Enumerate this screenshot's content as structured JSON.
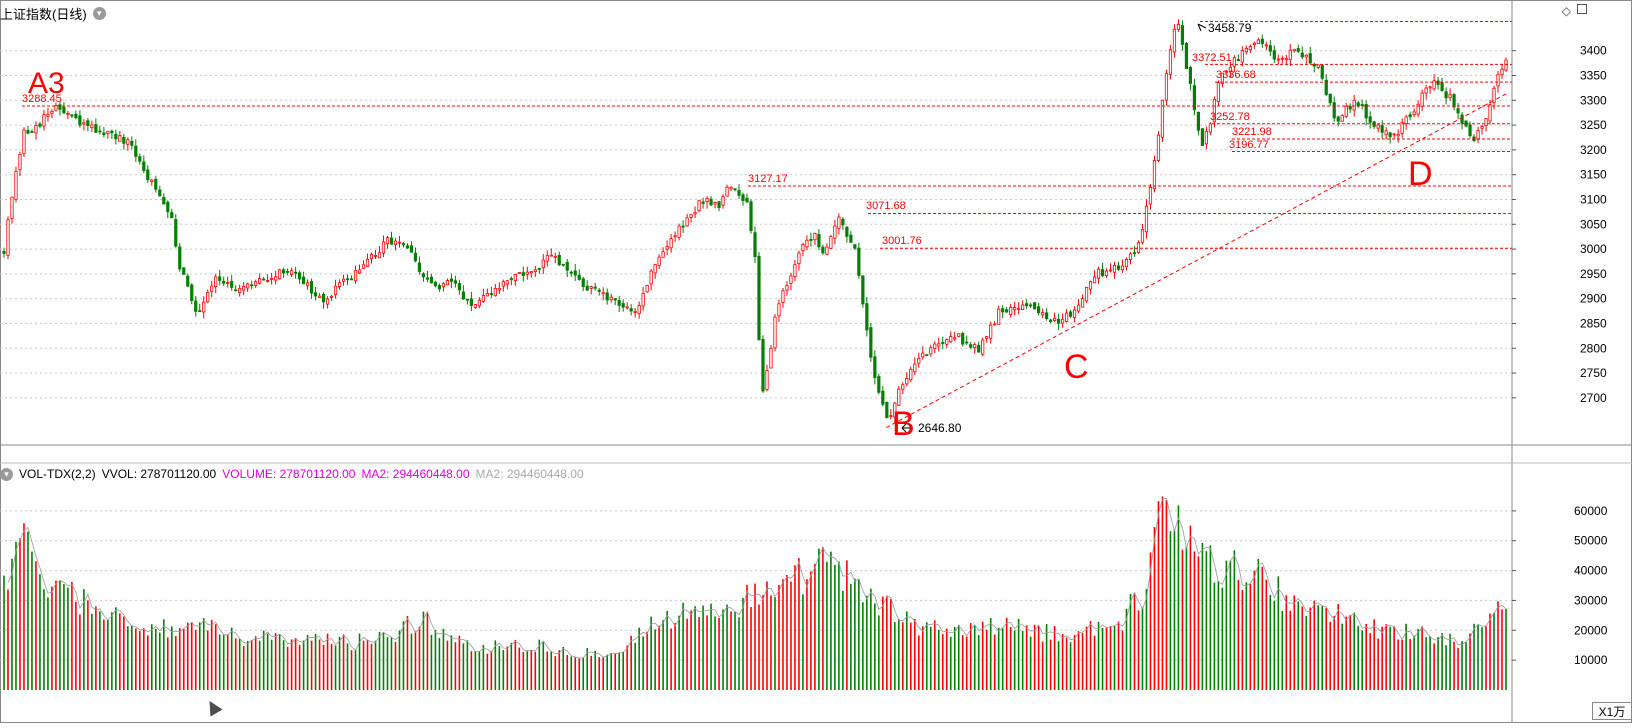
{
  "header": {
    "title": "上证指数(日线)",
    "title_button_icon": "chevron-down-icon"
  },
  "volume_header": {
    "button_icon": "chevron-down-icon",
    "indicator": "VOL-TDX(2,2)",
    "vvol": "VVOL: 278701120.00",
    "volume": "VOLUME: 278701120.00",
    "ma2": "MA2: 294460448.00",
    "ma2_alt": "MA2: 294460448.00",
    "colors": {
      "volume": "#e000e0",
      "ma2": "#e000e0",
      "ma2_alt": "#aaaaaa"
    }
  },
  "unit_label": "X1万",
  "colors": {
    "up": "#ff0000",
    "down": "#008000",
    "annotation": "#ff0000",
    "grid": "#c8c8c8"
  },
  "chart_data": [
    {
      "type": "candlestick",
      "title": "上证指数(日线)",
      "y_ticks": [
        2700,
        2750,
        2800,
        2850,
        2900,
        2950,
        3000,
        3050,
        3100,
        3150,
        3200,
        3250,
        3300,
        3350,
        3400
      ],
      "ylim": [
        2615,
        3470
      ],
      "grid": true,
      "bars": 377,
      "anchors": [
        [
          0,
          3000
        ],
        [
          4,
          3100
        ],
        [
          10,
          3230
        ],
        [
          23,
          3270
        ],
        [
          27,
          3288.45
        ],
        [
          40,
          3250
        ],
        [
          50,
          3240
        ],
        [
          65,
          3210
        ],
        [
          80,
          3110
        ],
        [
          87,
          3070
        ],
        [
          90,
          2980
        ],
        [
          100,
          2870
        ],
        [
          110,
          2950
        ],
        [
          120,
          2910
        ],
        [
          135,
          2940
        ],
        [
          150,
          2960
        ],
        [
          165,
          2890
        ],
        [
          175,
          2930
        ],
        [
          190,
          2980
        ],
        [
          200,
          3020
        ],
        [
          210,
          3000
        ],
        [
          215,
          2950
        ],
        [
          225,
          2920
        ],
        [
          233,
          2935
        ],
        [
          243,
          2880
        ],
        [
          255,
          2920
        ],
        [
          265,
          2950
        ],
        [
          275,
          2950
        ],
        [
          283,
          2990
        ],
        [
          290,
          2960
        ],
        [
          300,
          2930
        ],
        [
          313,
          2900
        ],
        [
          318,
          2885
        ],
        [
          328,
          2880
        ],
        [
          338,
          2980
        ],
        [
          350,
          3040
        ],
        [
          362,
          3100
        ],
        [
          370,
          3090
        ],
        [
          375,
          3127.17
        ],
        [
          385,
          3090
        ],
        [
          390,
          2960
        ],
        [
          392,
          2700
        ],
        [
          396,
          2770
        ],
        [
          400,
          2880
        ],
        [
          405,
          2930
        ],
        [
          415,
          3010
        ],
        [
          420,
          3030
        ],
        [
          425,
          2990
        ],
        [
          430,
          3050
        ],
        [
          433,
          3071.68
        ],
        [
          437,
          3010
        ],
        [
          441,
          3001.76
        ],
        [
          445,
          2890
        ],
        [
          450,
          2760
        ],
        [
          455,
          2690
        ],
        [
          458,
          2646.8
        ],
        [
          462,
          2700
        ],
        [
          470,
          2760
        ],
        [
          480,
          2800
        ],
        [
          490,
          2830
        ],
        [
          505,
          2800
        ],
        [
          515,
          2870
        ],
        [
          525,
          2890
        ],
        [
          535,
          2880
        ],
        [
          545,
          2850
        ],
        [
          555,
          2880
        ],
        [
          565,
          2950
        ],
        [
          575,
          2960
        ],
        [
          585,
          2990
        ],
        [
          590,
          3050
        ],
        [
          594,
          3130
        ],
        [
          598,
          3240
        ],
        [
          602,
          3350
        ],
        [
          605,
          3420
        ],
        [
          608,
          3458.79
        ],
        [
          612,
          3372.51
        ],
        [
          617,
          3280
        ],
        [
          620,
          3196.77
        ],
        [
          625,
          3260
        ],
        [
          630,
          3350
        ],
        [
          640,
          3390
        ],
        [
          650,
          3420
        ],
        [
          660,
          3380
        ],
        [
          670,
          3400
        ],
        [
          680,
          3372.51
        ],
        [
          690,
          3260
        ],
        [
          700,
          3300
        ],
        [
          710,
          3250
        ],
        [
          720,
          3230
        ],
        [
          730,
          3280
        ],
        [
          740,
          3340
        ],
        [
          750,
          3300
        ],
        [
          757,
          3240
        ],
        [
          762,
          3221.98
        ],
        [
          767,
          3260
        ],
        [
          772,
          3330
        ],
        [
          777,
          3380
        ]
      ],
      "annotations": [
        {
          "text": "A3",
          "price": 3288.45,
          "label": "3288.45"
        },
        {
          "text": "B",
          "price": 2646.8,
          "label": "2646.80"
        },
        {
          "text": "C"
        },
        {
          "text": "D"
        },
        {
          "label": "3458.79",
          "price": 3458.79
        },
        {
          "label": "3372.51",
          "price": 3372.51
        },
        {
          "label": "3336.68",
          "price": 3336.68
        },
        {
          "label": "3252.78",
          "price": 3252.78
        },
        {
          "label": "3221.98",
          "price": 3221.98
        },
        {
          "label": "3196.77",
          "price": 3196.77
        },
        {
          "label": "3127.17",
          "price": 3127.17
        },
        {
          "label": "3071.68",
          "price": 3071.68
        },
        {
          "label": "3001.76",
          "price": 3001.76
        }
      ],
      "trendline": {
        "from": [
          458,
          2640
        ],
        "to": [
          780,
          3315
        ]
      }
    },
    {
      "type": "bar",
      "title": "VOL-TDX(2,2)",
      "y_ticks": [
        10000,
        20000,
        30000,
        40000,
        50000,
        60000
      ],
      "ylim": [
        0,
        69000
      ],
      "unit": "X1万",
      "anchors": [
        [
          0,
          35000
        ],
        [
          10,
          48000
        ],
        [
          22,
          38000
        ],
        [
          40,
          30000
        ],
        [
          60,
          24000
        ],
        [
          80,
          20000
        ],
        [
          100,
          21000
        ],
        [
          120,
          18000
        ],
        [
          140,
          17000
        ],
        [
          160,
          16500
        ],
        [
          180,
          16000
        ],
        [
          200,
          18000
        ],
        [
          215,
          24000
        ],
        [
          230,
          18000
        ],
        [
          245,
          14000
        ],
        [
          260,
          16000
        ],
        [
          275,
          15000
        ],
        [
          290,
          13000
        ],
        [
          305,
          12500
        ],
        [
          320,
          14000
        ],
        [
          335,
          22000
        ],
        [
          350,
          25000
        ],
        [
          365,
          27000
        ],
        [
          380,
          28000
        ],
        [
          390,
          34000
        ],
        [
          400,
          30000
        ],
        [
          412,
          38000
        ],
        [
          422,
          43000
        ],
        [
          432,
          40000
        ],
        [
          445,
          32000
        ],
        [
          458,
          27000
        ],
        [
          470,
          22000
        ],
        [
          490,
          20000
        ],
        [
          510,
          21000
        ],
        [
          530,
          20000
        ],
        [
          550,
          19000
        ],
        [
          565,
          21000
        ],
        [
          580,
          24000
        ],
        [
          590,
          34000
        ],
        [
          596,
          50000
        ],
        [
          602,
          65000
        ],
        [
          608,
          58000
        ],
        [
          620,
          44000
        ],
        [
          632,
          40000
        ],
        [
          645,
          40000
        ],
        [
          660,
          33000
        ],
        [
          675,
          27000
        ],
        [
          690,
          28000
        ],
        [
          700,
          22000
        ],
        [
          712,
          20000
        ],
        [
          725,
          20000
        ],
        [
          740,
          18000
        ],
        [
          755,
          17000
        ],
        [
          765,
          20000
        ],
        [
          772,
          24000
        ],
        [
          777,
          28000
        ]
      ]
    }
  ]
}
